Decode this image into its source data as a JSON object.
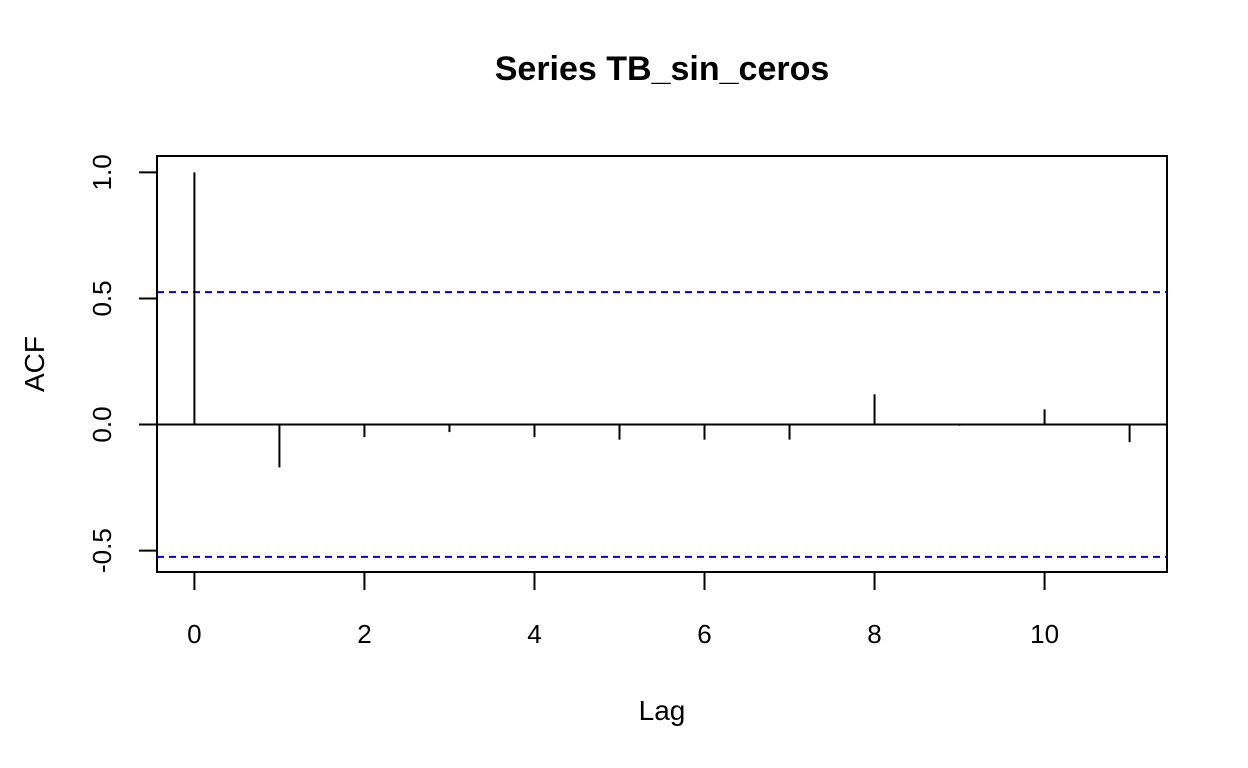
{
  "chart_data": {
    "type": "bar",
    "title": "Series  TB_sin_ceros",
    "xlabel": "Lag",
    "ylabel": "ACF",
    "lags": [
      0,
      1,
      2,
      3,
      4,
      5,
      6,
      7,
      8,
      9,
      10,
      11
    ],
    "values": [
      1.0,
      -0.17,
      -0.05,
      -0.03,
      -0.05,
      -0.06,
      -0.06,
      -0.06,
      0.12,
      -0.005,
      0.06,
      -0.07
    ],
    "confidence_limit": 0.525,
    "xlim": [
      -0.44,
      11.44
    ],
    "ylim": [
      -0.585,
      1.065
    ],
    "x_ticks": [
      "0",
      "2",
      "4",
      "6",
      "8",
      "10"
    ],
    "y_ticks": [
      "-0.5",
      "0.0",
      "0.5",
      "1.0"
    ],
    "colors": {
      "bars": "#000000",
      "ci_line": "#0000cc",
      "zero_line": "#000000"
    }
  }
}
